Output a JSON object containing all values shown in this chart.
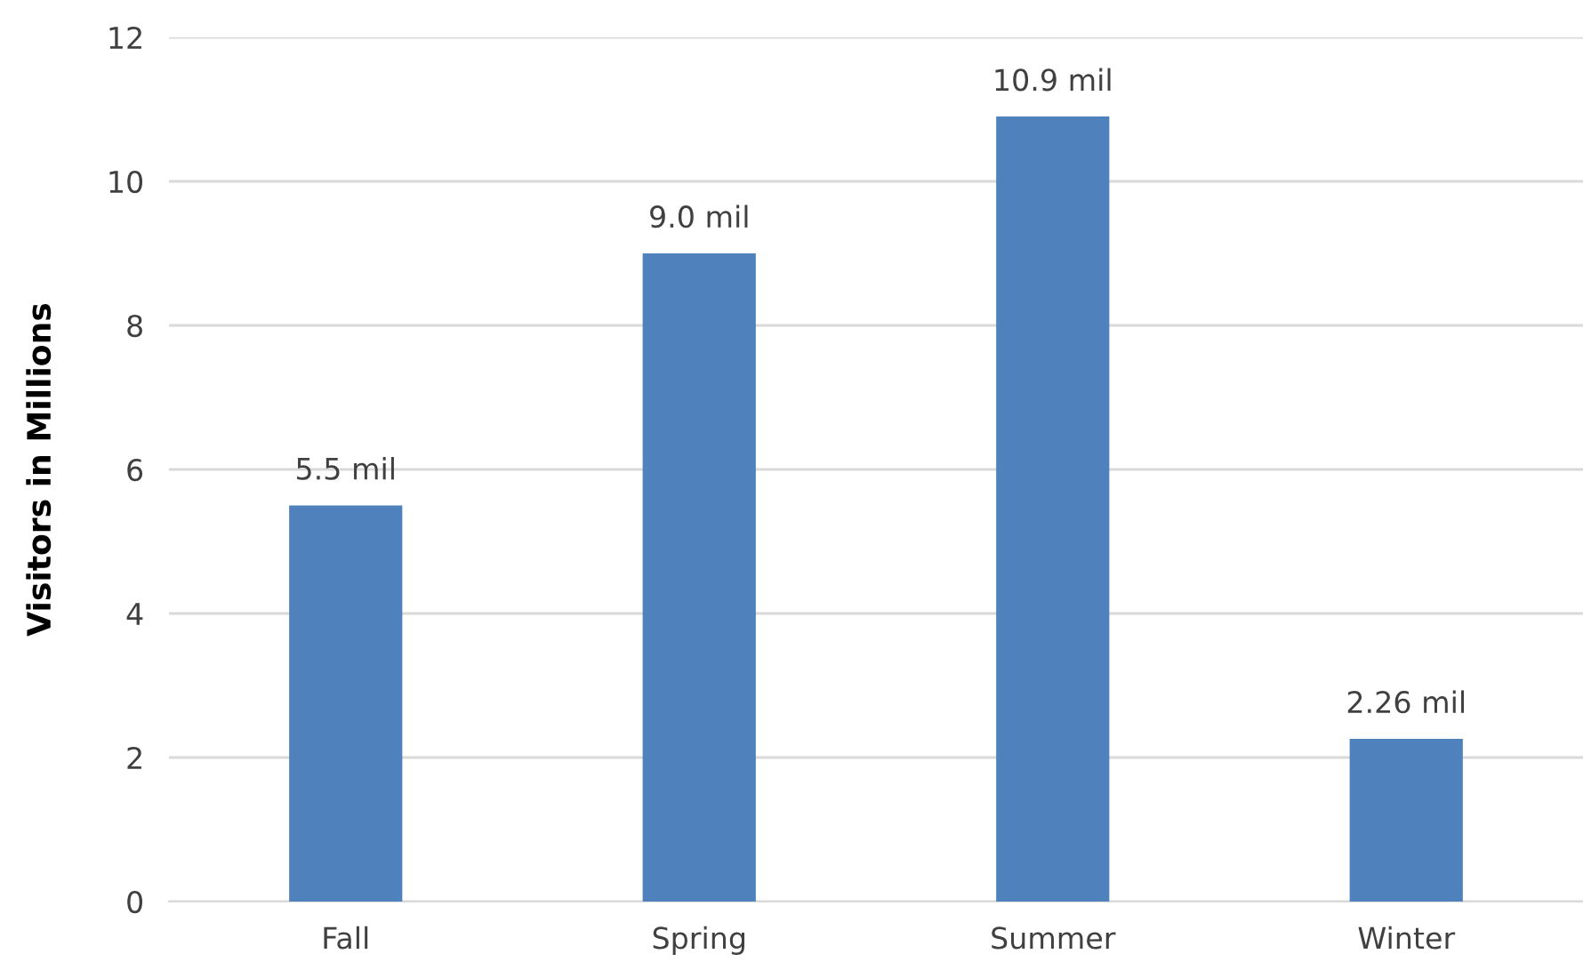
{
  "chart_data": {
    "type": "bar",
    "ylabel": "Visitors in Millions",
    "categories": [
      "Fall",
      "Spring",
      "Summer",
      "Winter"
    ],
    "values": [
      5.5,
      9.0,
      10.9,
      2.26
    ],
    "value_labels": [
      "5.5 mil",
      "9.0 mil",
      "10.9 mil",
      "2.26 mil"
    ],
    "color": "#4f81bd",
    "ylim": [
      0,
      12
    ],
    "yticks": [
      0,
      2,
      4,
      6,
      8,
      10,
      12
    ],
    "grid": "y",
    "legend": false
  }
}
